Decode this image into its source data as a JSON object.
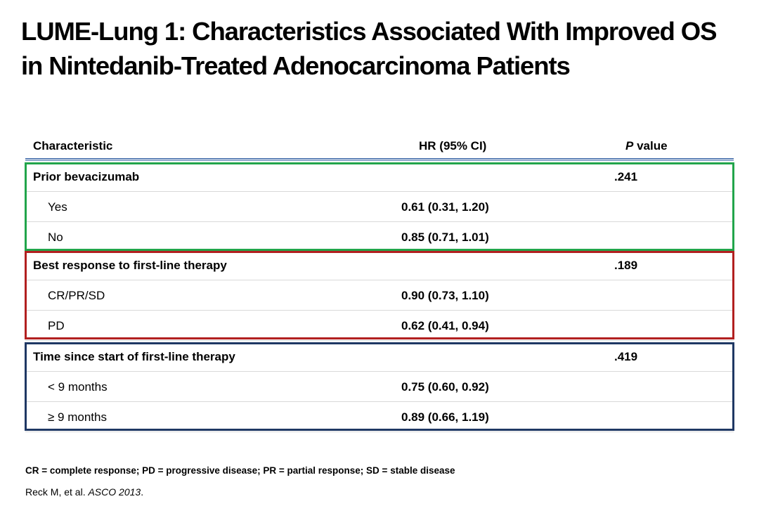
{
  "slide": {
    "title_line1": "LUME-Lung 1: Characteristics Associated With Improved OS",
    "title_line2": "in Nintedanib-Treated Adenocarcinoma Patients"
  },
  "table": {
    "headers": {
      "characteristic": "Characteristic",
      "hr": "HR (95% CI)",
      "p_italic": "P",
      "p_rest": " value"
    },
    "groups": [
      {
        "color": "#22a54b",
        "label": "Prior bevacizumab",
        "p": ".241",
        "rows": [
          {
            "label": "Yes",
            "hr": "0.61 (0.31, 1.20)"
          },
          {
            "label": "No",
            "hr": "0.85 (0.71, 1.01)"
          }
        ]
      },
      {
        "color": "#b22020",
        "label": "Best response to first-line therapy",
        "p": ".189",
        "rows": [
          {
            "label": "CR/PR/SD",
            "hr": "0.90 (0.73, 1.10)"
          },
          {
            "label": "PD",
            "hr": "0.62 (0.41, 0.94)"
          }
        ]
      },
      {
        "color": "#1f3864",
        "label": "Time since start of first-line therapy",
        "p": ".419",
        "rows": [
          {
            "label": "< 9 months",
            "hr": "0.75 (0.60, 0.92)"
          },
          {
            "label": "≥ 9 months",
            "hr": "0.89 (0.66, 1.19)"
          }
        ]
      }
    ]
  },
  "footnote": "CR = complete response; PD = progressive disease; PR = partial response; SD = stable disease",
  "citation": {
    "authors": "Reck M, et al. ",
    "source_italic": "ASCO 2013",
    "end": "."
  }
}
